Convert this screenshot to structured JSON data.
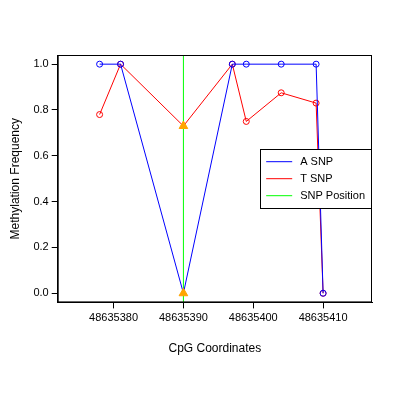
{
  "chart_data": {
    "type": "line",
    "x_label": "CpG Coordinates",
    "y_label": "Methylation Frequency",
    "x": [
      48635378,
      48635381,
      48635390,
      48635397,
      48635399,
      48635404,
      48635409,
      48635410
    ],
    "series": [
      {
        "name": "A SNP",
        "color": "#0000ff",
        "marker": "circle",
        "values": [
          1.0,
          1.0,
          0.0,
          1.0,
          1.0,
          1.0,
          1.0,
          0.0
        ]
      },
      {
        "name": "T SNP",
        "color": "#ff0000",
        "marker": "circle",
        "values": [
          0.78,
          1.0,
          0.73,
          1.0,
          0.75,
          0.875,
          0.83,
          0.0
        ]
      },
      {
        "name": "SNP Position",
        "color": "#00ff00",
        "type": "vline",
        "x": 48635390
      }
    ],
    "xlim": [
      48635372,
      48635417
    ],
    "xticks": [
      48635380,
      48635390,
      48635400,
      48635410
    ],
    "ylim": [
      -0.04,
      1.04
    ],
    "yticks": [
      {
        "value": 0,
        "label": "0.0"
      },
      {
        "value": 0.2,
        "label": "0.2"
      },
      {
        "value": 0.4,
        "label": "0.4"
      },
      {
        "value": 0.6,
        "label": "0.6"
      },
      {
        "value": 0.8,
        "label": "0.8"
      },
      {
        "value": 1.0,
        "label": "1.0"
      }
    ],
    "grid": false,
    "legend": "right"
  }
}
